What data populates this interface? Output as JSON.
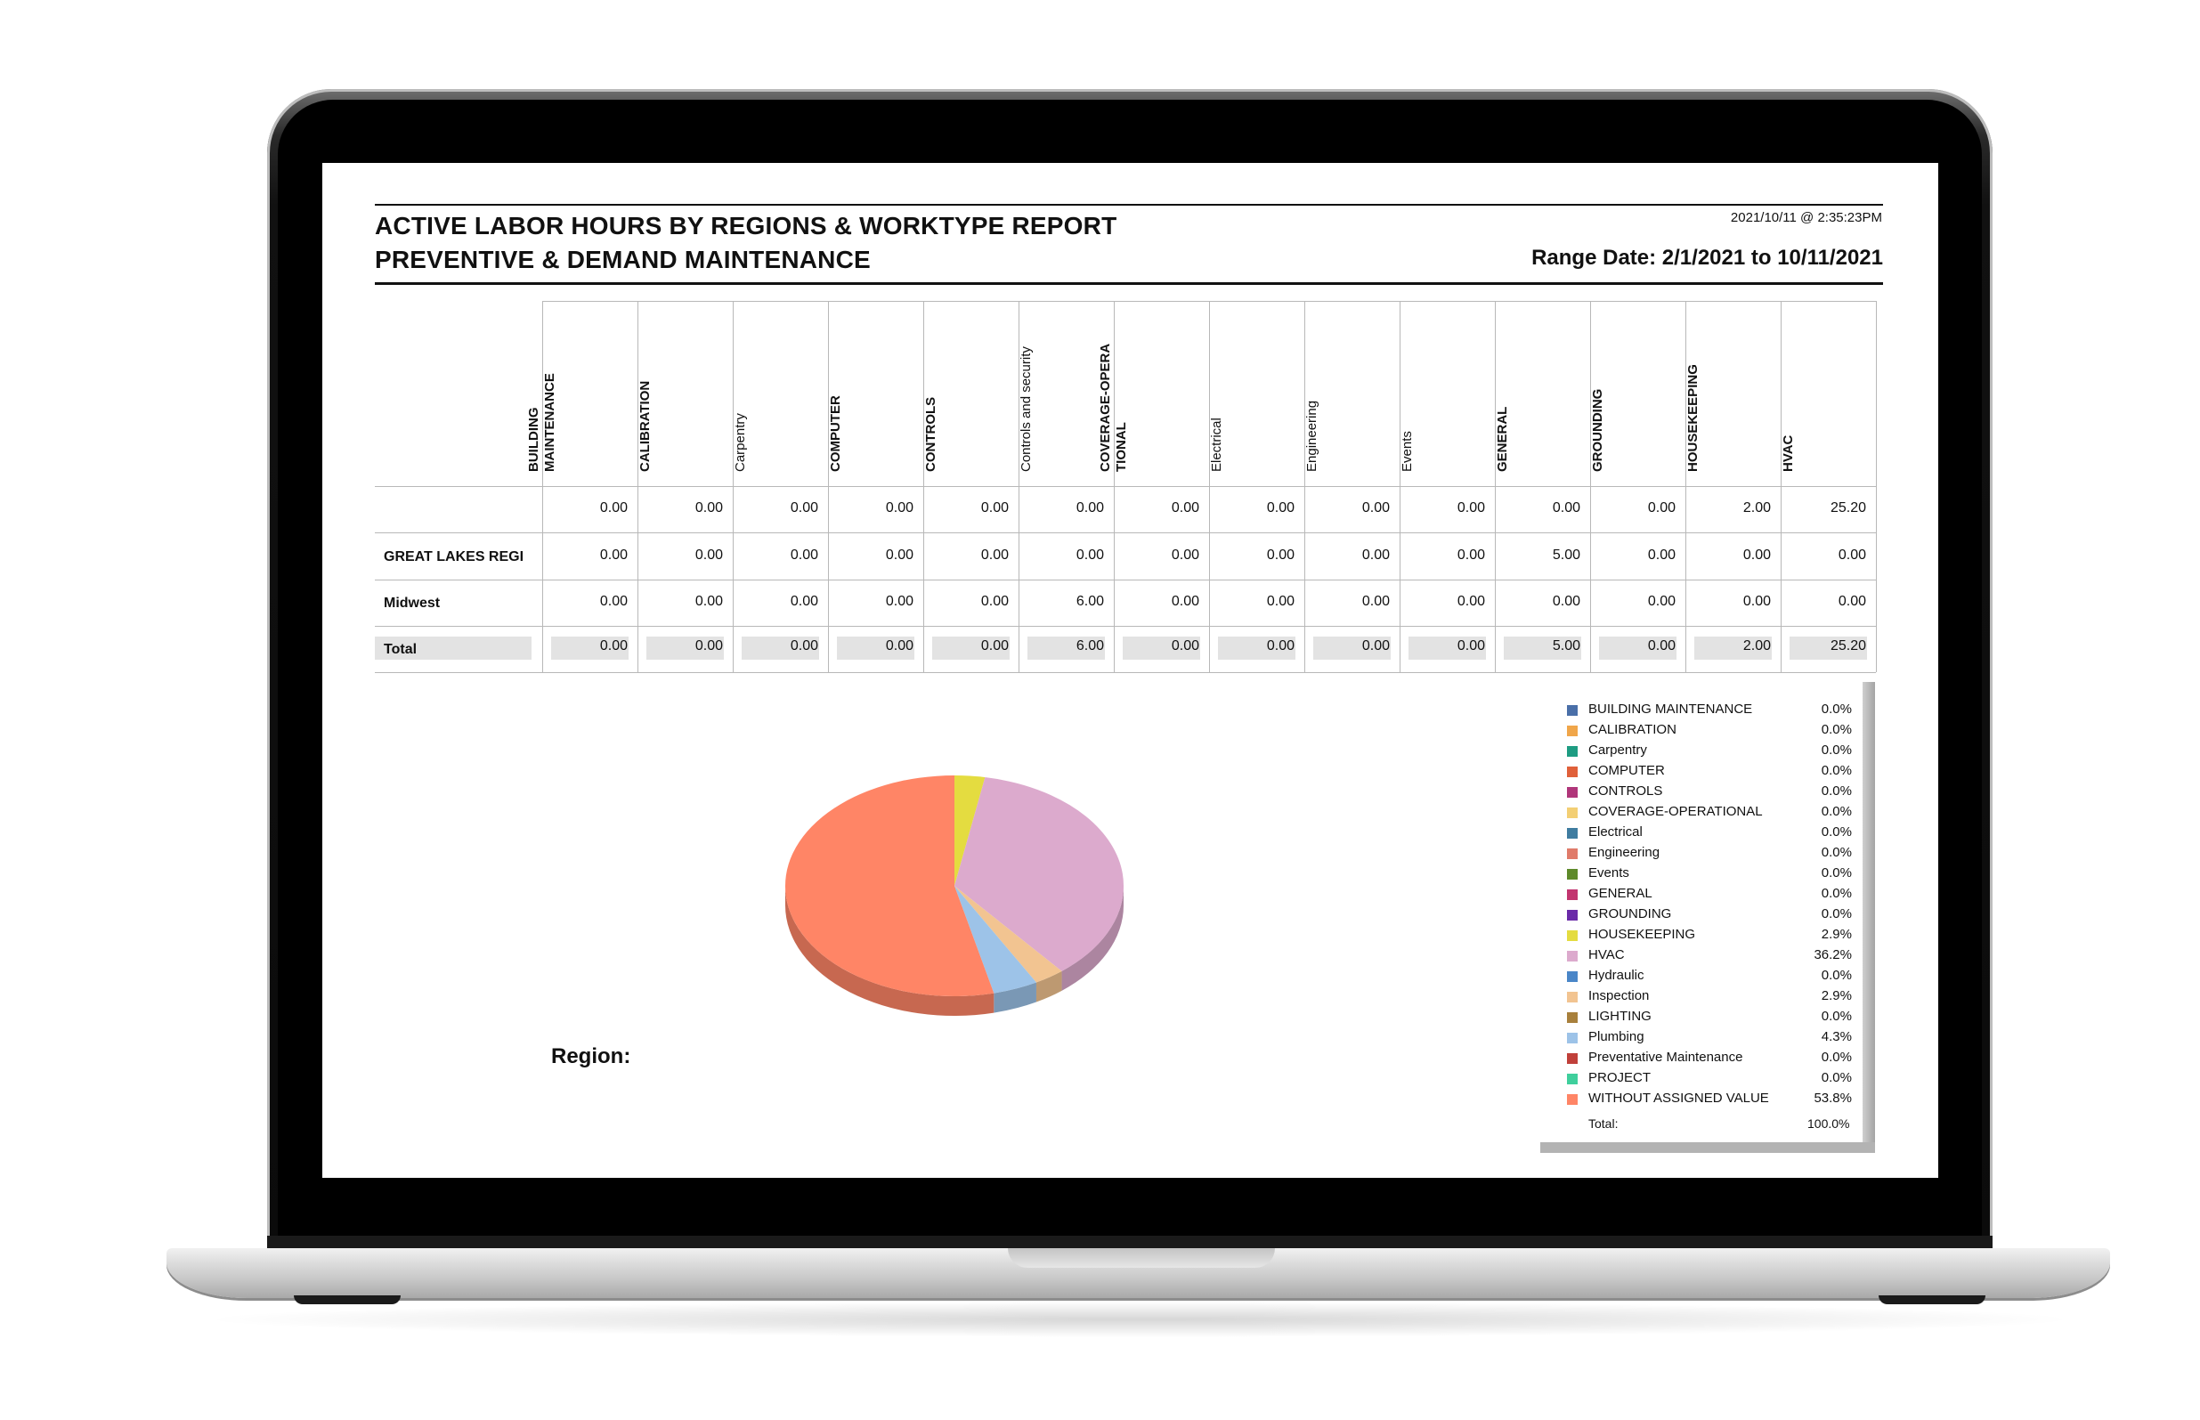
{
  "report": {
    "title_line1": "ACTIVE LABOR HOURS BY REGIONS & WORKTYPE REPORT",
    "title_line2": "PREVENTIVE & DEMAND MAINTENANCE",
    "timestamp": "2021/10/11 @  2:35:23PM",
    "range": "Range Date: 2/1/2021 to 10/11/2021"
  },
  "table": {
    "columns": [
      "BUILDING MAINTENANCE",
      "CALIBRATION",
      "Carpentry",
      "COMPUTER",
      "CONTROLS",
      "Controls and security",
      "COVERAGE-OPERA TIONAL",
      "Electrical",
      "Engineering",
      "Events",
      "GENERAL",
      "GROUNDING",
      "HOUSEKEEPING",
      "HVAC"
    ],
    "rows": [
      {
        "label": "",
        "values": [
          "0.00",
          "0.00",
          "0.00",
          "0.00",
          "0.00",
          "0.00",
          "0.00",
          "0.00",
          "0.00",
          "0.00",
          "0.00",
          "0.00",
          "2.00",
          "25.20"
        ]
      },
      {
        "label": "GREAT LAKES REGI",
        "values": [
          "0.00",
          "0.00",
          "0.00",
          "0.00",
          "0.00",
          "0.00",
          "0.00",
          "0.00",
          "0.00",
          "0.00",
          "5.00",
          "0.00",
          "0.00",
          "0.00"
        ]
      },
      {
        "label": "Midwest",
        "values": [
          "0.00",
          "0.00",
          "0.00",
          "0.00",
          "0.00",
          "6.00",
          "0.00",
          "0.00",
          "0.00",
          "0.00",
          "0.00",
          "0.00",
          "0.00",
          "0.00"
        ]
      },
      {
        "label": "Total",
        "values": [
          "0.00",
          "0.00",
          "0.00",
          "0.00",
          "0.00",
          "6.00",
          "0.00",
          "0.00",
          "0.00",
          "0.00",
          "5.00",
          "0.00",
          "2.00",
          "25.20"
        ]
      }
    ]
  },
  "region_label": "Region:",
  "legend": {
    "items": [
      {
        "name": "BUILDING MAINTENANCE",
        "pct": "0.0%",
        "color": "#4a6fa8"
      },
      {
        "name": "CALIBRATION",
        "pct": "0.0%",
        "color": "#f0a64a"
      },
      {
        "name": "Carpentry",
        "pct": "0.0%",
        "color": "#1e9c82"
      },
      {
        "name": "COMPUTER",
        "pct": "0.0%",
        "color": "#e0603a"
      },
      {
        "name": "CONTROLS",
        "pct": "0.0%",
        "color": "#b0367a"
      },
      {
        "name": "COVERAGE-OPERATIONAL",
        "pct": "0.0%",
        "color": "#f3cf74"
      },
      {
        "name": "Electrical",
        "pct": "0.0%",
        "color": "#3f7ca0"
      },
      {
        "name": "Engineering",
        "pct": "0.0%",
        "color": "#e07b6a"
      },
      {
        "name": "Events",
        "pct": "0.0%",
        "color": "#5e8a2a"
      },
      {
        "name": "GENERAL",
        "pct": "0.0%",
        "color": "#c2356f"
      },
      {
        "name": "GROUNDING",
        "pct": "0.0%",
        "color": "#6a2aa8"
      },
      {
        "name": "HOUSEKEEPING",
        "pct": "2.9%",
        "color": "#e4dc40"
      },
      {
        "name": "HVAC",
        "pct": "36.2%",
        "color": "#dcaacd"
      },
      {
        "name": "Hydraulic",
        "pct": "0.0%",
        "color": "#4a86c8"
      },
      {
        "name": "Inspection",
        "pct": "2.9%",
        "color": "#f2c491"
      },
      {
        "name": "LIGHTING",
        "pct": "0.0%",
        "color": "#a8803c"
      },
      {
        "name": "Plumbing",
        "pct": "4.3%",
        "color": "#9dc3e8"
      },
      {
        "name": "Preventative Maintenance",
        "pct": "0.0%",
        "color": "#c0403a"
      },
      {
        "name": "PROJECT",
        "pct": "0.0%",
        "color": "#3fcf9c"
      },
      {
        "name": "WITHOUT ASSIGNED VALUE",
        "pct": "53.8%",
        "color": "#ff8566"
      }
    ],
    "total_label": "Total:",
    "total_value": "100.0%"
  },
  "chart_data": {
    "type": "pie",
    "title": "",
    "slices": [
      {
        "label": "HOUSEKEEPING",
        "value": 2.9,
        "color": "#e4dc40"
      },
      {
        "label": "HVAC",
        "value": 36.2,
        "color": "#dcaacd"
      },
      {
        "label": "Inspection",
        "value": 2.9,
        "color": "#f2c491"
      },
      {
        "label": "Plumbing",
        "value": 4.3,
        "color": "#9dc3e8"
      },
      {
        "label": "WITHOUT ASSIGNED VALUE",
        "value": 53.8,
        "color": "#ff8566"
      }
    ],
    "legend_placement": "right"
  }
}
